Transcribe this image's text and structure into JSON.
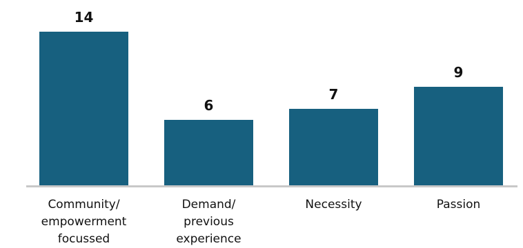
{
  "chart_data": {
    "type": "bar",
    "categories": [
      "Community/\nempowerment\nfocussed",
      "Demand/\nprevious\nexperience",
      "Necessity",
      "Passion"
    ],
    "values": [
      14,
      6,
      7,
      9
    ],
    "data_labels": [
      "14",
      "6",
      "7",
      "9"
    ],
    "title": "",
    "xlabel": "",
    "ylabel": "",
    "ylim": [
      0,
      14
    ],
    "grid": false,
    "legend": "none",
    "bar_color": "#17607f",
    "axis_color": "#c8c8c8"
  }
}
